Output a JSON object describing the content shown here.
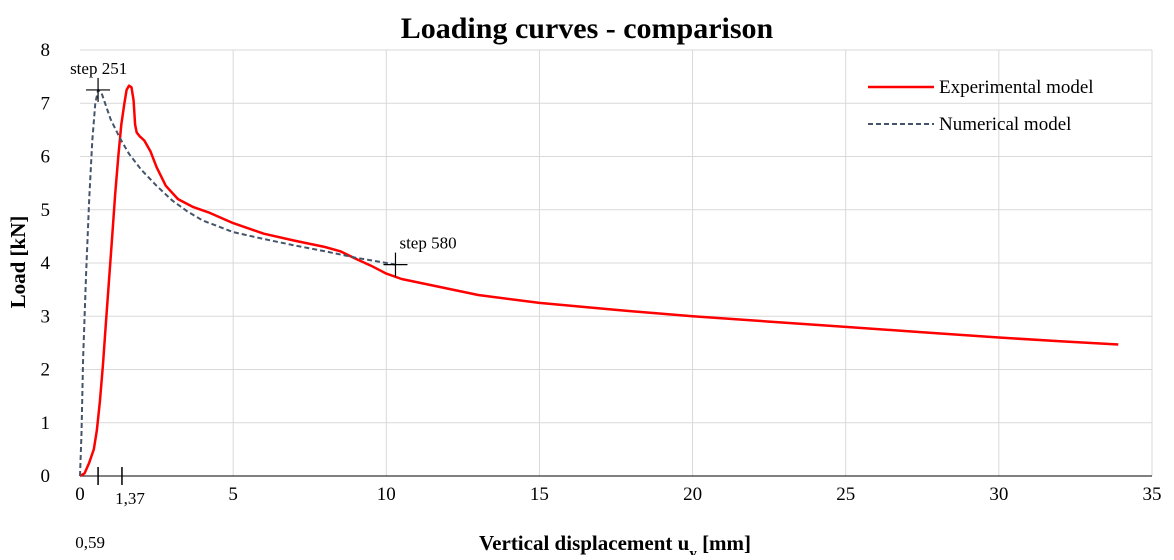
{
  "chart_data": {
    "type": "line",
    "title": "Loading curves - comparison",
    "xlabel": "Vertical displacement u",
    "xlabel_sub": "y",
    "xlabel_unit": " [mm]",
    "ylabel": "Load [kN]",
    "xlim": [
      0,
      35
    ],
    "ylim": [
      0,
      8
    ],
    "x_ticks": [
      0,
      5,
      10,
      15,
      20,
      25,
      30,
      35
    ],
    "y_ticks": [
      0,
      1,
      2,
      3,
      4,
      5,
      6,
      7,
      8
    ],
    "grid": true,
    "legend_position": "top-right",
    "series": [
      {
        "name": "Experimental model",
        "color": "#ff0000",
        "style": "solid",
        "points": [
          [
            0,
            0
          ],
          [
            0.15,
            0.05
          ],
          [
            0.3,
            0.25
          ],
          [
            0.45,
            0.5
          ],
          [
            0.55,
            0.85
          ],
          [
            0.65,
            1.4
          ],
          [
            0.75,
            2.1
          ],
          [
            0.85,
            2.9
          ],
          [
            0.95,
            3.7
          ],
          [
            1.05,
            4.5
          ],
          [
            1.15,
            5.3
          ],
          [
            1.25,
            6.0
          ],
          [
            1.35,
            6.6
          ],
          [
            1.45,
            7.0
          ],
          [
            1.52,
            7.25
          ],
          [
            1.6,
            7.33
          ],
          [
            1.68,
            7.3
          ],
          [
            1.75,
            7.05
          ],
          [
            1.8,
            6.6
          ],
          [
            1.85,
            6.45
          ],
          [
            1.95,
            6.38
          ],
          [
            2.1,
            6.3
          ],
          [
            2.3,
            6.1
          ],
          [
            2.5,
            5.8
          ],
          [
            2.8,
            5.45
          ],
          [
            3.2,
            5.2
          ],
          [
            3.7,
            5.05
          ],
          [
            4.2,
            4.95
          ],
          [
            5.0,
            4.75
          ],
          [
            6.0,
            4.55
          ],
          [
            7.0,
            4.42
          ],
          [
            8.0,
            4.3
          ],
          [
            8.5,
            4.22
          ],
          [
            9.0,
            4.08
          ],
          [
            9.5,
            3.95
          ],
          [
            10.0,
            3.8
          ],
          [
            10.5,
            3.7
          ],
          [
            11.5,
            3.58
          ],
          [
            13,
            3.4
          ],
          [
            15,
            3.25
          ],
          [
            17.5,
            3.12
          ],
          [
            20,
            3.0
          ],
          [
            22.5,
            2.9
          ],
          [
            25,
            2.8
          ],
          [
            27.5,
            2.7
          ],
          [
            30,
            2.6
          ],
          [
            32,
            2.53
          ],
          [
            33.9,
            2.47
          ]
        ]
      },
      {
        "name": "Numerical model",
        "color": "#44546a",
        "style": "dashed",
        "points": [
          [
            0,
            0
          ],
          [
            0.05,
            0.8
          ],
          [
            0.1,
            2.2
          ],
          [
            0.2,
            3.8
          ],
          [
            0.3,
            5.2
          ],
          [
            0.4,
            6.3
          ],
          [
            0.5,
            7.0
          ],
          [
            0.59,
            7.25
          ],
          [
            0.7,
            7.2
          ],
          [
            0.85,
            6.95
          ],
          [
            1.0,
            6.7
          ],
          [
            1.3,
            6.35
          ],
          [
            1.6,
            6.05
          ],
          [
            2.0,
            5.75
          ],
          [
            2.5,
            5.45
          ],
          [
            3.0,
            5.18
          ],
          [
            3.5,
            4.97
          ],
          [
            4.0,
            4.8
          ],
          [
            5.0,
            4.58
          ],
          [
            6.0,
            4.45
          ],
          [
            7.0,
            4.33
          ],
          [
            8.0,
            4.22
          ],
          [
            9.0,
            4.1
          ],
          [
            10.3,
            3.97
          ]
        ]
      }
    ],
    "annotations": [
      {
        "text": "step 251",
        "x": 0.59,
        "y": 7.25
      },
      {
        "text": "step 580",
        "x": 10.3,
        "y": 3.97
      }
    ],
    "extra_ticks": [
      {
        "value": 0.59,
        "label": "0,59"
      },
      {
        "value": 1.37,
        "label": "1,37"
      }
    ]
  }
}
